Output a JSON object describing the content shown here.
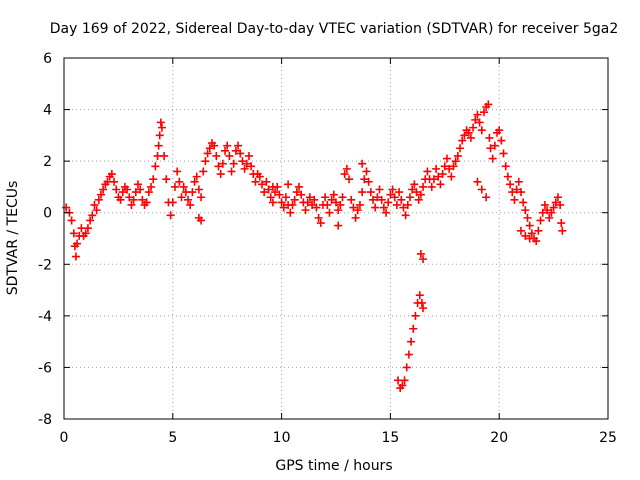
{
  "chart_data": {
    "type": "scatter",
    "title": "Day 169 of 2022, Sidereal Day-to-day VTEC variation (SDTVAR) for receiver 5ga2",
    "xlabel": "GPS time / hours",
    "ylabel": "SDTVAR / TECUs",
    "xlim": [
      0,
      25
    ],
    "ylim": [
      -8,
      6
    ],
    "xticks": [
      0,
      5,
      10,
      15,
      20,
      25
    ],
    "yticks": [
      -8,
      -6,
      -4,
      -2,
      0,
      2,
      4,
      6
    ],
    "grid": true,
    "marker": "+",
    "marker_color": "#ff0000",
    "series": [
      {
        "name": "SDTVAR",
        "points": [
          [
            0.1,
            0.2
          ],
          [
            0.25,
            0.0
          ],
          [
            0.35,
            -0.3
          ],
          [
            0.45,
            -0.8
          ],
          [
            0.5,
            -1.3
          ],
          [
            0.55,
            -1.7
          ],
          [
            0.6,
            -1.2
          ],
          [
            0.7,
            -0.9
          ],
          [
            0.8,
            -0.6
          ],
          [
            0.9,
            -0.9
          ],
          [
            1.0,
            -0.8
          ],
          [
            1.1,
            -0.6
          ],
          [
            1.2,
            -0.3
          ],
          [
            1.3,
            -0.1
          ],
          [
            1.4,
            0.3
          ],
          [
            1.5,
            0.1
          ],
          [
            1.6,
            0.5
          ],
          [
            1.7,
            0.7
          ],
          [
            1.8,
            0.9
          ],
          [
            1.9,
            1.1
          ],
          [
            2.0,
            1.2
          ],
          [
            2.1,
            1.4
          ],
          [
            2.2,
            1.5
          ],
          [
            2.3,
            1.2
          ],
          [
            2.4,
            0.9
          ],
          [
            2.5,
            0.6
          ],
          [
            2.6,
            0.5
          ],
          [
            2.7,
            0.8
          ],
          [
            2.8,
            1.0
          ],
          [
            2.9,
            0.9
          ],
          [
            3.0,
            0.6
          ],
          [
            3.1,
            0.3
          ],
          [
            3.2,
            0.5
          ],
          [
            3.3,
            0.8
          ],
          [
            3.4,
            1.1
          ],
          [
            3.5,
            0.9
          ],
          [
            3.6,
            0.5
          ],
          [
            3.7,
            0.3
          ],
          [
            3.8,
            0.4
          ],
          [
            3.9,
            0.8
          ],
          [
            4.0,
            1.0
          ],
          [
            4.1,
            1.3
          ],
          [
            4.2,
            1.8
          ],
          [
            4.3,
            2.2
          ],
          [
            4.35,
            2.6
          ],
          [
            4.4,
            3.0
          ],
          [
            4.45,
            3.5
          ],
          [
            4.5,
            3.3
          ],
          [
            4.6,
            2.2
          ],
          [
            4.7,
            1.3
          ],
          [
            4.8,
            0.4
          ],
          [
            4.9,
            -0.1
          ],
          [
            5.0,
            0.4
          ],
          [
            5.1,
            1.0
          ],
          [
            5.2,
            1.6
          ],
          [
            5.3,
            1.2
          ],
          [
            5.4,
            0.6
          ],
          [
            5.5,
            1.0
          ],
          [
            5.6,
            0.8
          ],
          [
            5.7,
            0.5
          ],
          [
            5.8,
            0.3
          ],
          [
            5.9,
            0.8
          ],
          [
            6.0,
            1.2
          ],
          [
            6.1,
            1.4
          ],
          [
            6.2,
            0.9
          ],
          [
            6.3,
            0.6
          ],
          [
            6.4,
            1.6
          ],
          [
            6.5,
            2.0
          ],
          [
            6.6,
            2.3
          ],
          [
            6.7,
            2.5
          ],
          [
            6.8,
            2.7
          ],
          [
            6.9,
            2.6
          ],
          [
            7.0,
            2.2
          ],
          [
            7.1,
            1.8
          ],
          [
            7.2,
            1.5
          ],
          [
            7.3,
            1.9
          ],
          [
            7.4,
            2.4
          ],
          [
            7.5,
            2.6
          ],
          [
            7.6,
            2.2
          ],
          [
            7.7,
            1.6
          ],
          [
            7.8,
            1.9
          ],
          [
            7.9,
            2.4
          ],
          [
            8.0,
            2.6
          ],
          [
            8.1,
            2.3
          ],
          [
            8.2,
            2.0
          ],
          [
            8.3,
            1.7
          ],
          [
            8.4,
            1.9
          ],
          [
            8.5,
            2.2
          ],
          [
            8.6,
            1.8
          ],
          [
            8.7,
            1.5
          ],
          [
            8.8,
            1.2
          ],
          [
            8.9,
            1.5
          ],
          [
            9.0,
            1.4
          ],
          [
            9.1,
            1.1
          ],
          [
            9.2,
            0.8
          ],
          [
            9.3,
            1.2
          ],
          [
            9.4,
            0.9
          ],
          [
            9.5,
            0.6
          ],
          [
            9.6,
            0.4
          ],
          [
            9.7,
            0.8
          ],
          [
            9.8,
            1.0
          ],
          [
            9.9,
            0.7
          ],
          [
            10.0,
            0.4
          ],
          [
            10.1,
            0.2
          ],
          [
            10.2,
            0.6
          ],
          [
            10.3,
            0.3
          ],
          [
            10.4,
            0.0
          ],
          [
            10.5,
            0.3
          ],
          [
            10.6,
            0.5
          ],
          [
            10.7,
            0.8
          ],
          [
            10.8,
            1.0
          ],
          [
            10.9,
            0.7
          ],
          [
            11.0,
            0.4
          ],
          [
            11.1,
            0.1
          ],
          [
            11.2,
            0.4
          ],
          [
            11.3,
            0.6
          ],
          [
            11.4,
            0.3
          ],
          [
            11.5,
            0.5
          ],
          [
            11.6,
            0.2
          ],
          [
            11.7,
            -0.2
          ],
          [
            11.8,
            -0.4
          ],
          [
            11.9,
            0.3
          ],
          [
            12.0,
            0.6
          ],
          [
            12.1,
            0.3
          ],
          [
            12.2,
            0.0
          ],
          [
            12.3,
            0.5
          ],
          [
            12.4,
            0.7
          ],
          [
            12.5,
            0.4
          ],
          [
            12.6,
            0.1
          ],
          [
            12.7,
            0.3
          ],
          [
            12.8,
            0.6
          ],
          [
            12.9,
            1.5
          ],
          [
            13.0,
            1.7
          ],
          [
            13.1,
            1.3
          ],
          [
            13.2,
            0.5
          ],
          [
            13.3,
            0.2
          ],
          [
            13.4,
            -0.2
          ],
          [
            13.5,
            0.1
          ],
          [
            13.6,
            0.3
          ],
          [
            13.7,
            0.8
          ],
          [
            13.8,
            1.3
          ],
          [
            13.9,
            1.6
          ],
          [
            14.0,
            1.2
          ],
          [
            14.1,
            0.8
          ],
          [
            14.2,
            0.5
          ],
          [
            14.3,
            0.2
          ],
          [
            14.4,
            0.6
          ],
          [
            14.5,
            0.9
          ],
          [
            14.6,
            0.5
          ],
          [
            14.7,
            0.2
          ],
          [
            14.8,
            0.0
          ],
          [
            14.9,
            0.4
          ],
          [
            15.0,
            0.7
          ],
          [
            15.1,
            0.9
          ],
          [
            15.2,
            0.6
          ],
          [
            15.3,
            0.3
          ],
          [
            15.35,
            -6.5
          ],
          [
            15.45,
            -6.8
          ],
          [
            15.55,
            -6.7
          ],
          [
            15.65,
            -6.5
          ],
          [
            15.75,
            -6.0
          ],
          [
            15.85,
            -5.5
          ],
          [
            15.95,
            -5.0
          ],
          [
            16.05,
            -4.5
          ],
          [
            16.15,
            -4.0
          ],
          [
            16.25,
            -3.5
          ],
          [
            16.35,
            -3.2
          ],
          [
            16.45,
            -3.5
          ],
          [
            16.5,
            -3.7
          ],
          [
            16.4,
            -1.6
          ],
          [
            16.5,
            -1.8
          ],
          [
            15.4,
            0.8
          ],
          [
            15.5,
            0.5
          ],
          [
            15.6,
            0.2
          ],
          [
            15.7,
            -0.1
          ],
          [
            15.8,
            0.3
          ],
          [
            15.9,
            0.6
          ],
          [
            16.0,
            0.9
          ],
          [
            16.1,
            1.1
          ],
          [
            16.2,
            0.8
          ],
          [
            16.3,
            0.5
          ],
          [
            16.4,
            0.7
          ],
          [
            16.5,
            1.0
          ],
          [
            16.6,
            1.3
          ],
          [
            16.7,
            1.6
          ],
          [
            16.8,
            1.3
          ],
          [
            16.9,
            1.0
          ],
          [
            17.0,
            1.3
          ],
          [
            17.1,
            1.7
          ],
          [
            17.2,
            1.4
          ],
          [
            17.3,
            1.1
          ],
          [
            17.4,
            1.5
          ],
          [
            17.5,
            1.8
          ],
          [
            17.6,
            2.1
          ],
          [
            17.7,
            1.7
          ],
          [
            17.8,
            1.4
          ],
          [
            17.9,
            1.8
          ],
          [
            18.0,
            2.0
          ],
          [
            18.1,
            2.2
          ],
          [
            18.2,
            2.5
          ],
          [
            18.3,
            2.8
          ],
          [
            18.4,
            3.0
          ],
          [
            18.5,
            3.2
          ],
          [
            18.6,
            3.1
          ],
          [
            18.7,
            2.9
          ],
          [
            18.8,
            3.3
          ],
          [
            18.9,
            3.6
          ],
          [
            19.0,
            3.8
          ],
          [
            19.1,
            3.5
          ],
          [
            19.2,
            3.2
          ],
          [
            19.3,
            3.9
          ],
          [
            19.4,
            4.1
          ],
          [
            19.5,
            4.2
          ],
          [
            19.55,
            2.9
          ],
          [
            19.6,
            2.5
          ],
          [
            19.7,
            2.1
          ],
          [
            19.8,
            2.6
          ],
          [
            19.9,
            3.1
          ],
          [
            20.0,
            3.2
          ],
          [
            20.1,
            2.8
          ],
          [
            20.2,
            2.3
          ],
          [
            20.3,
            1.8
          ],
          [
            20.4,
            1.4
          ],
          [
            20.5,
            1.1
          ],
          [
            20.6,
            0.8
          ],
          [
            20.7,
            0.5
          ],
          [
            20.8,
            0.9
          ],
          [
            20.9,
            1.2
          ],
          [
            21.0,
            0.8
          ],
          [
            21.1,
            0.4
          ],
          [
            21.2,
            0.1
          ],
          [
            21.3,
            -0.2
          ],
          [
            21.4,
            -0.5
          ],
          [
            21.5,
            -0.8
          ],
          [
            21.6,
            -1.0
          ],
          [
            21.7,
            -1.1
          ],
          [
            21.8,
            -0.7
          ],
          [
            21.9,
            -0.3
          ],
          [
            22.0,
            0.0
          ],
          [
            22.1,
            0.3
          ],
          [
            22.2,
            0.1
          ],
          [
            22.3,
            -0.2
          ],
          [
            22.4,
            0.0
          ],
          [
            22.5,
            0.2
          ],
          [
            22.6,
            0.4
          ],
          [
            22.7,
            0.6
          ],
          [
            22.8,
            0.3
          ],
          [
            22.85,
            -0.4
          ],
          [
            22.9,
            -0.7
          ],
          [
            21.0,
            -0.7
          ],
          [
            21.2,
            -0.9
          ],
          [
            21.4,
            -1.0
          ],
          [
            19.0,
            1.2
          ],
          [
            19.2,
            0.9
          ],
          [
            19.4,
            0.6
          ],
          [
            6.2,
            -0.2
          ],
          [
            6.3,
            -0.3
          ],
          [
            9.6,
            1.0
          ],
          [
            10.3,
            1.1
          ],
          [
            12.6,
            -0.5
          ],
          [
            13.7,
            1.9
          ]
        ]
      }
    ]
  }
}
